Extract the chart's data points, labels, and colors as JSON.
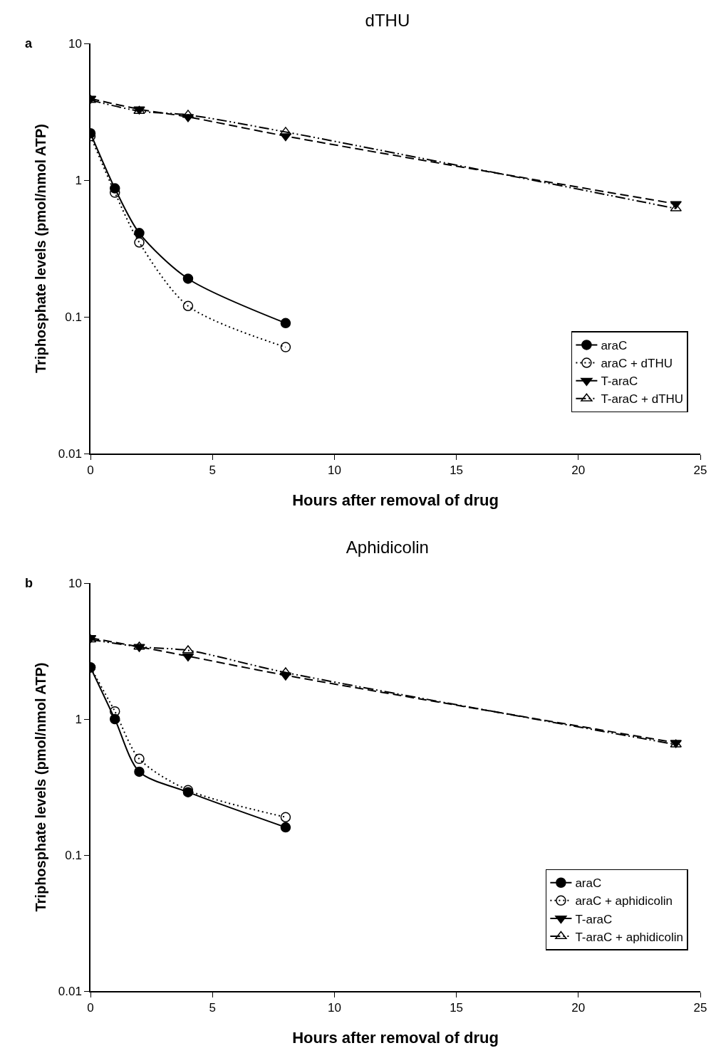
{
  "chart_data": [
    {
      "type": "line",
      "title": "dTHU",
      "xlabel": "Hours after removal of drug",
      "ylabel": "Triphosphate levels (pmol/nmol ATP)",
      "annotations": [
        "a"
      ],
      "log": "y",
      "grid": false,
      "legend": "bottom right",
      "xlim": [
        0,
        25
      ],
      "xticks": [
        0,
        5,
        10,
        15,
        20,
        25
      ],
      "ylim": [
        0.01,
        10
      ],
      "yticks": [
        0.01,
        0.1,
        1,
        10
      ],
      "series": [
        {
          "name": "araC",
          "color": "#000000",
          "line_style": "solid",
          "marker": "circle",
          "x": [
            0,
            1,
            2,
            4,
            8
          ],
          "values": [
            2.2,
            0.87,
            0.41,
            0.19,
            0.09
          ]
        },
        {
          "name": "araC + dTHU",
          "color": "#000000",
          "line_style": "dotted",
          "marker": "circle-open",
          "x": [
            0,
            1,
            2,
            4,
            8
          ],
          "values": [
            2.1,
            0.81,
            0.35,
            0.12,
            0.06
          ]
        },
        {
          "name": "T-araC",
          "color": "#000000",
          "line_style": "dashed",
          "marker": "triangle-down",
          "x": [
            0,
            2,
            4,
            8,
            24
          ],
          "values": [
            3.95,
            3.3,
            2.9,
            2.1,
            0.67
          ]
        },
        {
          "name": "T-araC + dTHU",
          "color": "#000000",
          "line_style": "dashdot",
          "marker": "triangle-open",
          "x": [
            0,
            2,
            4,
            8,
            24
          ],
          "values": [
            3.85,
            3.2,
            3.0,
            2.25,
            0.62
          ]
        }
      ]
    },
    {
      "type": "line",
      "title": "Aphidicolin",
      "xlabel": "Hours after removal of drug",
      "ylabel": "Triphosphate levels (pmol/nmol ATP)",
      "annotations": [
        "b"
      ],
      "log": "y",
      "grid": false,
      "legend": "bottom right",
      "xlim": [
        0,
        25
      ],
      "xticks": [
        0,
        5,
        10,
        15,
        20,
        25
      ],
      "ylim": [
        0.01,
        10
      ],
      "yticks": [
        0.01,
        0.1,
        1,
        10
      ],
      "series": [
        {
          "name": "araC",
          "color": "#000000",
          "line_style": "solid",
          "marker": "circle",
          "x": [
            0,
            1,
            2,
            4,
            8
          ],
          "values": [
            2.4,
            1.0,
            0.41,
            0.29,
            0.16
          ]
        },
        {
          "name": "araC + aphidicolin",
          "color": "#000000",
          "line_style": "dotted",
          "marker": "circle-open",
          "x": [
            0,
            1,
            2,
            4,
            8
          ],
          "values": [
            2.4,
            1.14,
            0.51,
            0.3,
            0.19
          ]
        },
        {
          "name": "T-araC",
          "color": "#000000",
          "line_style": "dashed",
          "marker": "triangle-down",
          "x": [
            0,
            2,
            4,
            8,
            24
          ],
          "values": [
            3.95,
            3.4,
            2.9,
            2.1,
            0.67
          ]
        },
        {
          "name": "T-araC + aphidicolin",
          "color": "#000000",
          "line_style": "dashdot",
          "marker": "triangle-open",
          "x": [
            0,
            2,
            4,
            8,
            24
          ],
          "values": [
            3.85,
            3.4,
            3.2,
            2.2,
            0.65
          ]
        }
      ]
    }
  ]
}
